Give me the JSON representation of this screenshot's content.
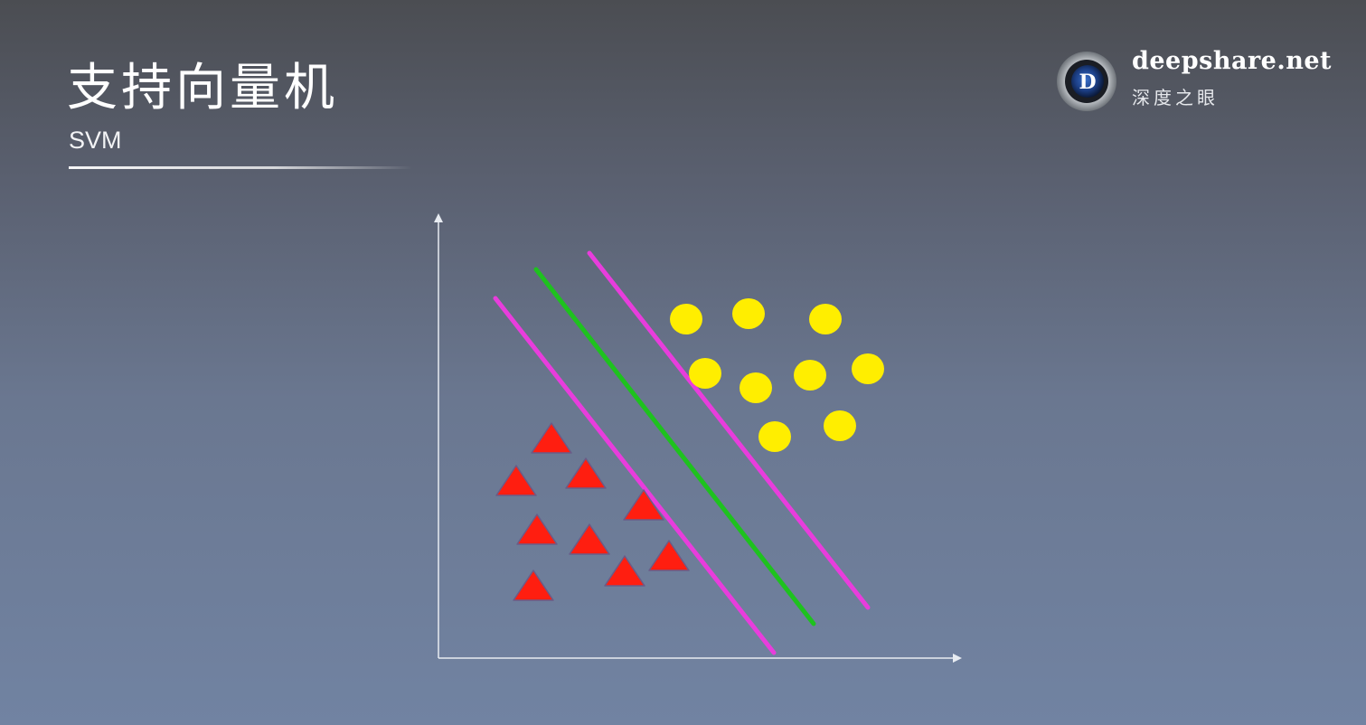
{
  "slide": {
    "title": "支持向量机",
    "subtitle": "SVM"
  },
  "brand": {
    "name": "deepshare.net",
    "tagline": "深度之眼",
    "logo_letter": "D"
  },
  "colors": {
    "triangle_fill": "#ff1e10",
    "triangle_stroke": "#6a5c88",
    "circle_fill": "#ffee00",
    "margin_line": "#e83ddc",
    "hyperplane_line": "#1ec21e",
    "axis": "#e8ecf2"
  }
}
